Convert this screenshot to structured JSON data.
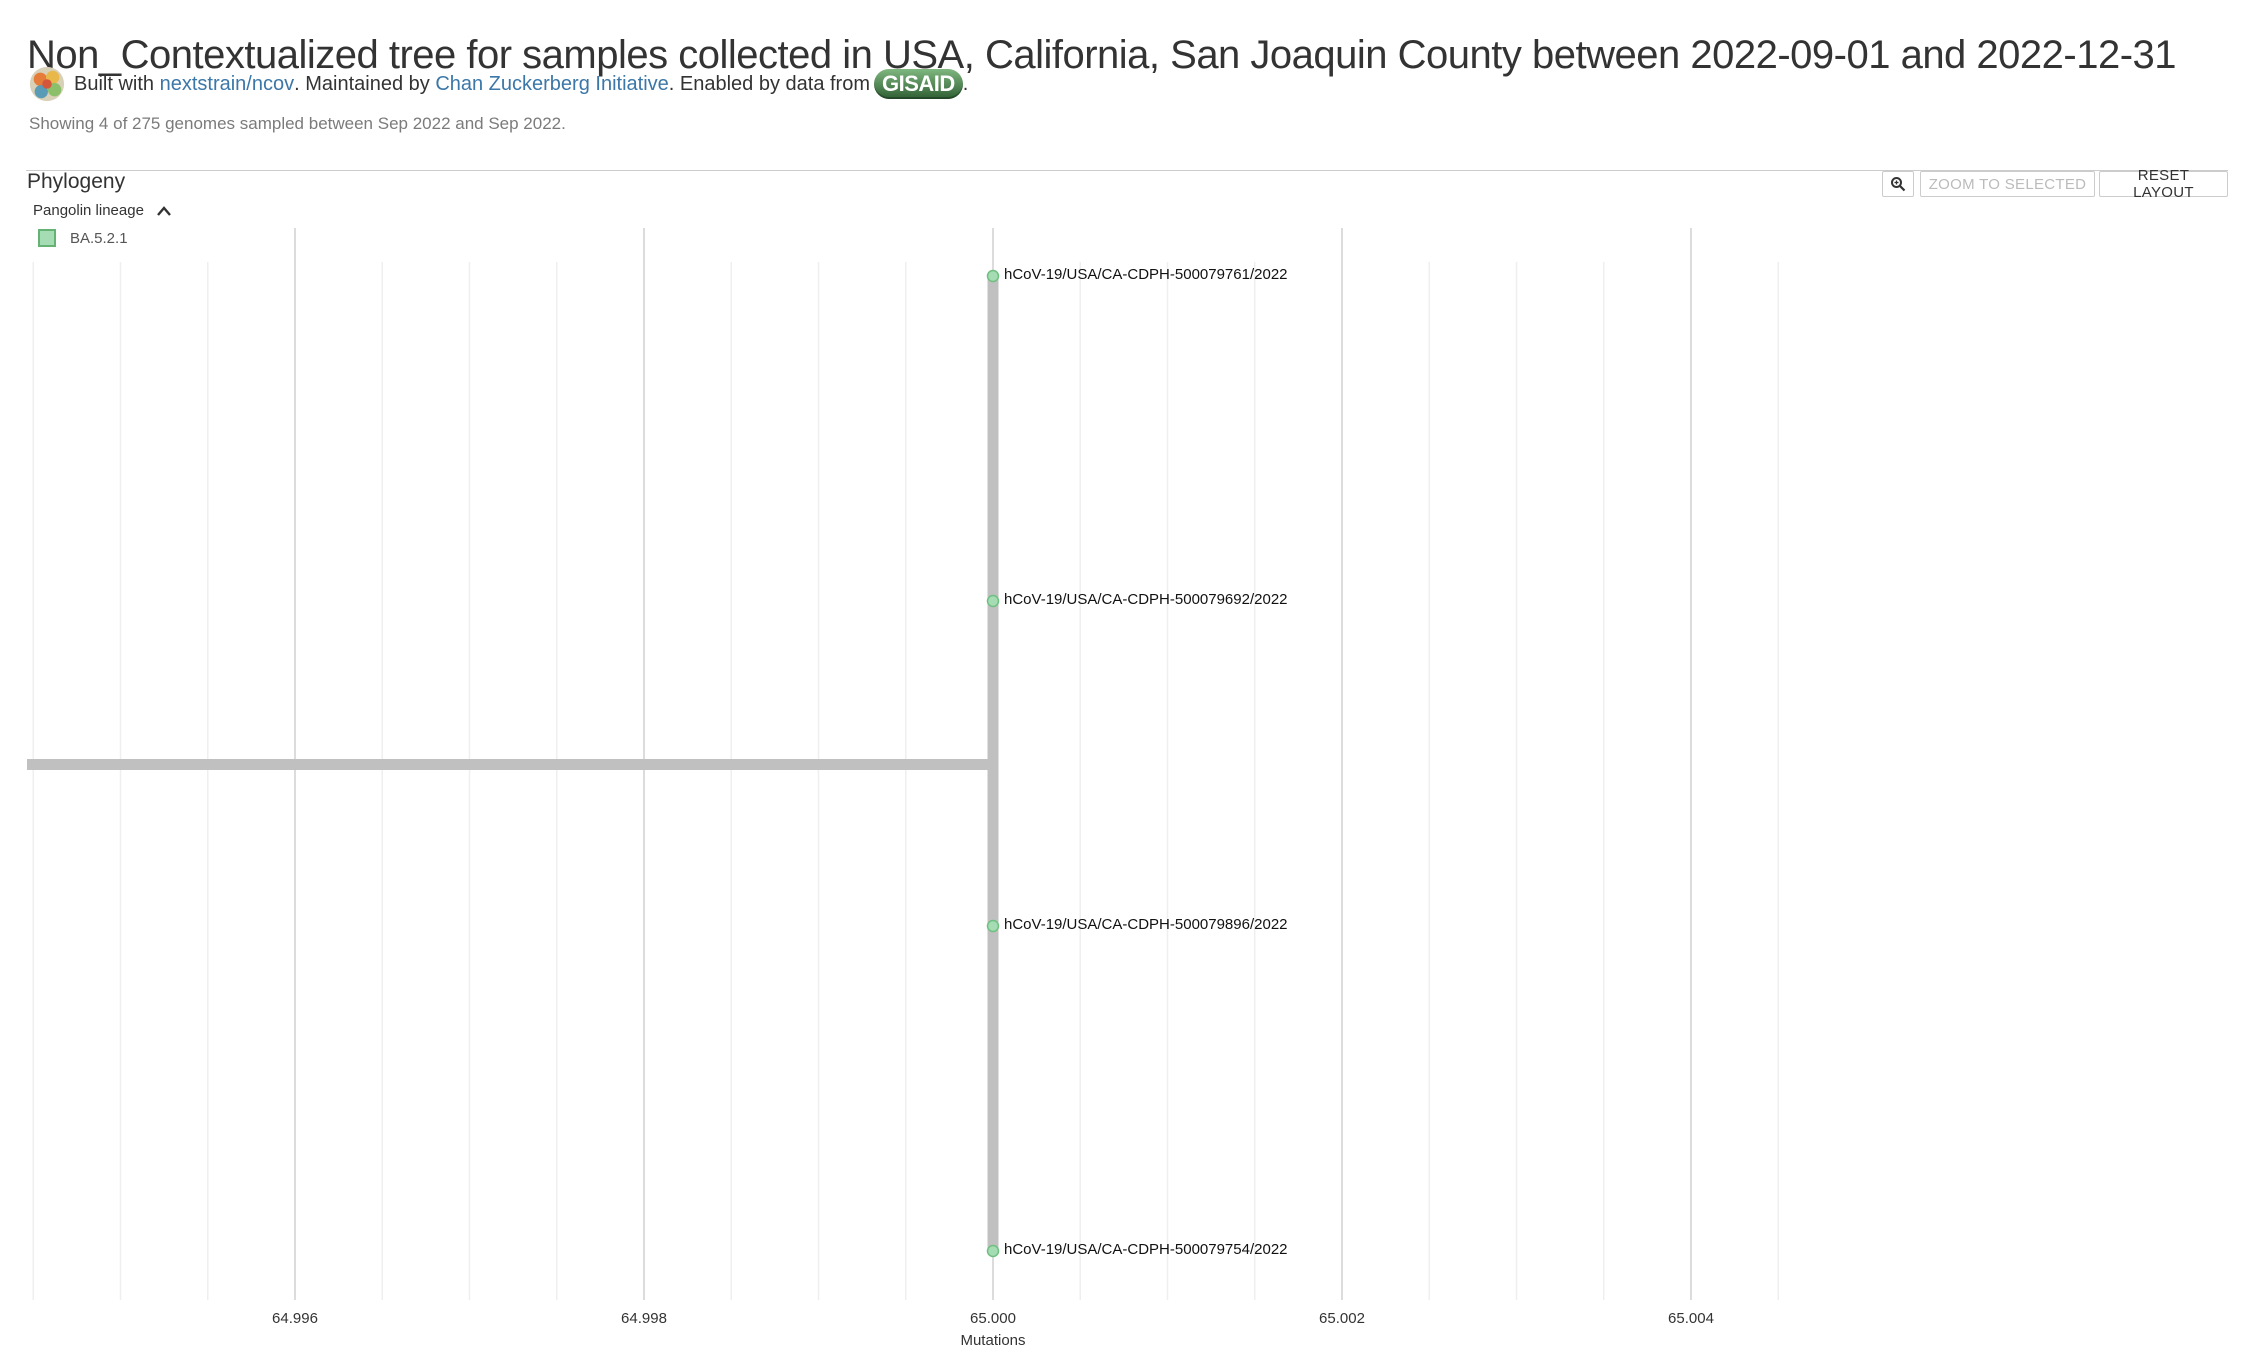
{
  "header": {
    "title": "Non_Contextualized tree for samples collected in USA, California, San Joaquin County between 2022-09-01 and 2022-12-31",
    "byline": {
      "built_with": "Built with",
      "ncov_link": "nextstrain/ncov",
      "maintained_by": ". Maintained by",
      "czi_link": "Chan Zuckerberg Initiative",
      "enabled_by": ". Enabled by data from",
      "gisaid": "GISAID",
      "end": "."
    },
    "summary": "Showing 4 of 275 genomes sampled between Sep 2022 and Sep 2022."
  },
  "panel": {
    "title": "Phylogeny",
    "zoom_to_selected": "ZOOM TO SELECTED",
    "reset_layout": "RESET LAYOUT",
    "zoom_icon": "magnifier-icon"
  },
  "legend": {
    "title": "Pangolin lineage",
    "toggle_icon": "chevron-up-icon",
    "items": [
      {
        "label": "BA.5.2.1",
        "color": "#a6dcb4"
      }
    ]
  },
  "chart_data": {
    "type": "scatter",
    "xlabel": "Mutations",
    "xlim": [
      64.9945,
      65.0053
    ],
    "ticks": [
      "64.996",
      "64.998",
      "65.000",
      "65.002",
      "65.004"
    ],
    "tick_values": [
      64.996,
      64.998,
      65.0,
      65.002,
      65.004
    ],
    "root_x": 64.9945,
    "node_x": 65.0,
    "tips": [
      {
        "name": "hCoV-19/USA/CA-CDPH-500079761/2022",
        "x": 65.0
      },
      {
        "name": "hCoV-19/USA/CA-CDPH-500079692/2022",
        "x": 65.0
      },
      {
        "name": "hCoV-19/USA/CA-CDPH-500079896/2022",
        "x": 65.0
      },
      {
        "name": "hCoV-19/USA/CA-CDPH-500079754/2022",
        "x": 65.0
      }
    ],
    "tip_color": "#a6dcb4",
    "branch_color": "#c0c0c0",
    "grid": true
  }
}
